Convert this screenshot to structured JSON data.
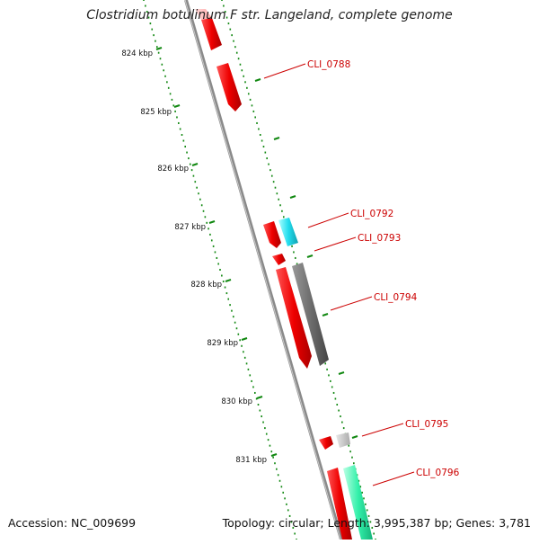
{
  "title": "Clostridium botulinum F str. Langeland, complete genome",
  "accession_text": "Accession: NC_009699",
  "summary_text": "Topology: circular; Length: 3,995,387 bp; Genes: 3,781",
  "colors": {
    "forward_cds": "#ee0000",
    "reverse_cds": "#6e6e6e",
    "cyan_cds": "#22ddee",
    "teal_cds": "#33f0aa",
    "light_cds": "#bbbbbb",
    "backbone": "#888888",
    "ticks": "#118811",
    "labels": "#cc0000"
  },
  "kbp_ticks": [
    "824 kbp",
    "825 kbp",
    "826 kbp",
    "827 kbp",
    "828 kbp",
    "829 kbp",
    "830 kbp",
    "831 kbp"
  ],
  "gene_labels": [
    "CLI_0788",
    "CLI_0792",
    "CLI_0793",
    "CLI_0794",
    "CLI_0795",
    "CLI_0796"
  ]
}
